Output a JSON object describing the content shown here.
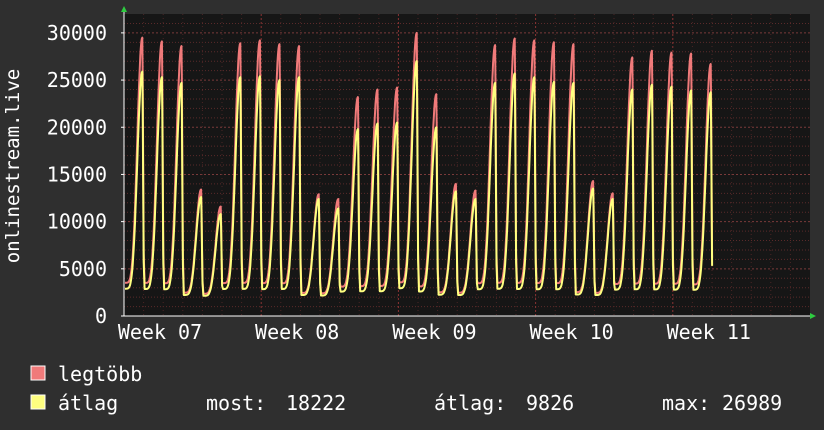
{
  "chart_data": {
    "type": "area",
    "ylabel": "onlinestream.live",
    "ylim": [
      0,
      32000
    ],
    "yticks": [
      0,
      5000,
      10000,
      15000,
      20000,
      25000,
      30000
    ],
    "yticks_labels": [
      "0",
      "5000",
      "10000",
      "15000",
      "20000",
      "25000",
      "30000"
    ],
    "xlim_days": [
      0,
      35
    ],
    "xticks": [
      {
        "label": "Week 07",
        "day": 0
      },
      {
        "label": "Week 08",
        "day": 7
      },
      {
        "label": "Week 09",
        "day": 14
      },
      {
        "label": "Week 10",
        "day": 21
      },
      {
        "label": "Week 11",
        "day": 28
      }
    ],
    "grid": true,
    "series": [
      {
        "name": "legtöbb",
        "color": "#f07a7a"
      },
      {
        "name": "átlag",
        "color": "#ffff80"
      }
    ],
    "daily_peaks": {
      "legtöbb": [
        29500,
        29100,
        28600,
        13400,
        11600,
        28900,
        29200,
        28800,
        28600,
        12900,
        12400,
        23200,
        24000,
        24200,
        30000,
        23500,
        14000,
        13300,
        28700,
        29400,
        29200,
        29000,
        28800,
        14300,
        13000,
        27400,
        28100,
        27900,
        27800,
        26700
      ],
      "átlag": [
        25900,
        25300,
        24700,
        12600,
        10800,
        25300,
        25400,
        25000,
        25300,
        12400,
        11400,
        19800,
        20400,
        20500,
        27000,
        20000,
        13200,
        12400,
        24700,
        25700,
        25300,
        24800,
        24700,
        13500,
        12400,
        24000,
        24500,
        24300,
        23900,
        23700
      ]
    },
    "legend_placement": "bottom-left",
    "stats": {
      "most_label": "most:",
      "most_value": "18222",
      "atlag_label": "átlag:",
      "atlag_value": "9826",
      "max_label": "max:",
      "max_value": "26989"
    }
  }
}
